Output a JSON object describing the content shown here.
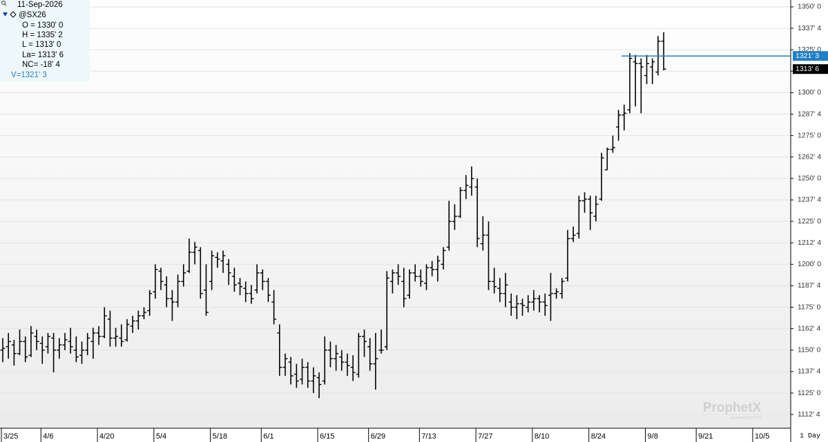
{
  "chart_data": {
    "type": "ohlc",
    "legend": {
      "date": "11-Sep-2026",
      "symbol": "@SX26",
      "lines": [
        "O = 1330' 0",
        "H = 1335' 2",
        "L = 1313' 0",
        "La= 1313' 6",
        "NC= -18' 4"
      ],
      "volume_line": "V=1321' 3"
    },
    "interval": "1 Day",
    "watermark": "ProphetX",
    "watermark_sub": "powered by DTN",
    "color": "#000000",
    "grid": true,
    "ylim": [
      1104.5,
      1354
    ],
    "yticks": [
      {
        "value": 1112.5,
        "label": "1112' 4"
      },
      {
        "value": 1125,
        "label": "1125' 0"
      },
      {
        "value": 1137.5,
        "label": "1137' 4"
      },
      {
        "value": 1150,
        "label": "1150' 0"
      },
      {
        "value": 1162.5,
        "label": "1162' 4"
      },
      {
        "value": 1175,
        "label": "1175' 0"
      },
      {
        "value": 1187.5,
        "label": "1187' 4"
      },
      {
        "value": 1200,
        "label": "1200' 0"
      },
      {
        "value": 1212.5,
        "label": "1212' 4"
      },
      {
        "value": 1225,
        "label": "1225' 0"
      },
      {
        "value": 1237.5,
        "label": "1237' 4"
      },
      {
        "value": 1250,
        "label": "1250' 0"
      },
      {
        "value": 1262.5,
        "label": "1262' 4"
      },
      {
        "value": 1275,
        "label": "1275' 0"
      },
      {
        "value": 1287.5,
        "label": "1287' 4"
      },
      {
        "value": 1300,
        "label": "1300' 0"
      },
      {
        "value": 1312.5,
        "label": "1312' 4"
      },
      {
        "value": 1325,
        "label": "1325' 0"
      },
      {
        "value": 1337.5,
        "label": "1337' 4"
      },
      {
        "value": 1350,
        "label": "1350' 0"
      }
    ],
    "markers": [
      {
        "value": 1321.375,
        "label": "1321' 3",
        "color": "#1f7fc8"
      },
      {
        "value": 1313.75,
        "label": "1313' 6",
        "color": "#000000"
      }
    ],
    "categories": [
      "3/25",
      null,
      null,
      null,
      null,
      null,
      null,
      "4/6",
      null,
      null,
      null,
      null,
      null,
      null,
      null,
      null,
      null,
      "4/20",
      null,
      null,
      null,
      null,
      null,
      null,
      null,
      null,
      null,
      "5/4",
      null,
      null,
      null,
      null,
      null,
      null,
      null,
      null,
      null,
      "5/18",
      null,
      null,
      null,
      null,
      null,
      null,
      null,
      null,
      "6/1",
      null,
      null,
      null,
      null,
      null,
      null,
      null,
      null,
      null,
      "6/15",
      null,
      null,
      null,
      null,
      null,
      null,
      null,
      null,
      "6/29",
      null,
      null,
      null,
      null,
      null,
      null,
      null,
      null,
      "7/13",
      null,
      null,
      null,
      null,
      null,
      null,
      null,
      null,
      null,
      "7/27",
      null,
      null,
      null,
      null,
      null,
      null,
      null,
      null,
      null,
      "8/10",
      null,
      null,
      null,
      null,
      null,
      null,
      null,
      null,
      null,
      "8/24",
      null,
      null,
      null,
      null,
      null,
      null,
      null,
      null,
      null,
      "9/8",
      null,
      null,
      null,
      null,
      null,
      null,
      null,
      null,
      "9/21",
      null,
      null,
      null,
      null,
      null,
      null,
      null,
      null,
      null,
      "10/5",
      null,
      null,
      null,
      null,
      null,
      null
    ],
    "ohlc": [
      [
        1150,
        1157,
        1143,
        1151
      ],
      [
        1152,
        1160,
        1145,
        1155
      ],
      [
        1153,
        1156,
        1141,
        1148
      ],
      [
        1148,
        1162,
        1147,
        1155
      ],
      [
        1155,
        1158,
        1143,
        1146
      ],
      [
        1147,
        1164,
        1146,
        1160
      ],
      [
        1158,
        1162,
        1150,
        1155
      ],
      [
        1154,
        1158,
        1142,
        1150
      ],
      [
        1152,
        1160,
        1148,
        1158
      ],
      [
        1157,
        1160,
        1137,
        1150
      ],
      [
        1150,
        1157,
        1145,
        1153
      ],
      [
        1153,
        1160,
        1150,
        1156
      ],
      [
        1155,
        1163,
        1148,
        1152
      ],
      [
        1150,
        1158,
        1143,
        1146
      ],
      [
        1147,
        1155,
        1142,
        1150
      ],
      [
        1150,
        1160,
        1147,
        1157
      ],
      [
        1155,
        1163,
        1145,
        1160
      ],
      [
        1160,
        1164,
        1153,
        1158
      ],
      [
        1158,
        1175,
        1157,
        1170
      ],
      [
        1168,
        1173,
        1152,
        1157
      ],
      [
        1157,
        1163,
        1152,
        1158
      ],
      [
        1157,
        1165,
        1152,
        1155
      ],
      [
        1156,
        1168,
        1155,
        1165
      ],
      [
        1164,
        1170,
        1160,
        1167
      ],
      [
        1167,
        1173,
        1162,
        1170
      ],
      [
        1170,
        1175,
        1168,
        1172
      ],
      [
        1173,
        1185,
        1170,
        1183
      ],
      [
        1184,
        1200,
        1180,
        1197
      ],
      [
        1196,
        1198,
        1185,
        1190
      ],
      [
        1188,
        1193,
        1175,
        1180
      ],
      [
        1180,
        1185,
        1167,
        1178
      ],
      [
        1178,
        1194,
        1175,
        1190
      ],
      [
        1190,
        1200,
        1187,
        1195
      ],
      [
        1196,
        1215,
        1195,
        1207
      ],
      [
        1207,
        1213,
        1200,
        1210
      ],
      [
        1208,
        1210,
        1180,
        1183
      ],
      [
        1185,
        1200,
        1170,
        1172
      ],
      [
        1190,
        1208,
        1185,
        1205
      ],
      [
        1204,
        1207,
        1198,
        1203
      ],
      [
        1202,
        1208,
        1195,
        1205
      ],
      [
        1200,
        1203,
        1188,
        1195
      ],
      [
        1193,
        1198,
        1184,
        1188
      ],
      [
        1189,
        1192,
        1182,
        1187
      ],
      [
        1186,
        1190,
        1178,
        1183
      ],
      [
        1183,
        1188,
        1177,
        1180
      ],
      [
        1185,
        1200,
        1183,
        1195
      ],
      [
        1195,
        1197,
        1185,
        1190
      ],
      [
        1190,
        1192,
        1178,
        1182
      ],
      [
        1178,
        1185,
        1165,
        1168
      ],
      [
        1160,
        1165,
        1135,
        1140
      ],
      [
        1140,
        1148,
        1135,
        1145
      ],
      [
        1143,
        1146,
        1130,
        1135
      ],
      [
        1136,
        1142,
        1128,
        1132
      ],
      [
        1133,
        1145,
        1130,
        1140
      ],
      [
        1140,
        1143,
        1128,
        1132
      ],
      [
        1132,
        1140,
        1125,
        1135
      ],
      [
        1134,
        1137,
        1122,
        1130
      ],
      [
        1132,
        1158,
        1130,
        1150
      ],
      [
        1150,
        1155,
        1140,
        1145
      ],
      [
        1145,
        1153,
        1138,
        1148
      ],
      [
        1146,
        1150,
        1138,
        1143
      ],
      [
        1143,
        1148,
        1135,
        1141
      ],
      [
        1140,
        1147,
        1132,
        1137
      ],
      [
        1136,
        1160,
        1134,
        1158
      ],
      [
        1158,
        1162,
        1146,
        1155
      ],
      [
        1152,
        1157,
        1138,
        1142
      ],
      [
        1142,
        1160,
        1127,
        1145
      ],
      [
        1150,
        1162,
        1148,
        1150
      ],
      [
        1152,
        1196,
        1150,
        1192
      ],
      [
        1190,
        1197,
        1183,
        1195
      ],
      [
        1195,
        1200,
        1188,
        1193
      ],
      [
        1190,
        1198,
        1175,
        1180
      ],
      [
        1182,
        1197,
        1180,
        1195
      ],
      [
        1195,
        1200,
        1190,
        1193
      ],
      [
        1193,
        1197,
        1187,
        1190
      ],
      [
        1189,
        1200,
        1185,
        1198
      ],
      [
        1198,
        1202,
        1193,
        1197
      ],
      [
        1197,
        1205,
        1190,
        1202
      ],
      [
        1200,
        1210,
        1197,
        1208
      ],
      [
        1210,
        1237,
        1208,
        1225
      ],
      [
        1225,
        1235,
        1220,
        1228
      ],
      [
        1228,
        1245,
        1227,
        1243
      ],
      [
        1243,
        1252,
        1238,
        1246
      ],
      [
        1245,
        1257,
        1240,
        1250
      ],
      [
        1245,
        1250,
        1210,
        1215
      ],
      [
        1212,
        1228,
        1208,
        1217
      ],
      [
        1217,
        1225,
        1185,
        1190
      ],
      [
        1190,
        1198,
        1183,
        1187
      ],
      [
        1186,
        1192,
        1178,
        1183
      ],
      [
        1183,
        1195,
        1175,
        1188
      ],
      [
        1178,
        1183,
        1170,
        1175
      ],
      [
        1175,
        1182,
        1168,
        1177
      ],
      [
        1177,
        1180,
        1170,
        1176
      ],
      [
        1175,
        1182,
        1172,
        1178
      ],
      [
        1178,
        1185,
        1173,
        1180
      ],
      [
        1180,
        1182,
        1172,
        1178
      ],
      [
        1178,
        1183,
        1170,
        1176
      ],
      [
        1182,
        1195,
        1167,
        1183
      ],
      [
        1183,
        1186,
        1180,
        1184
      ],
      [
        1183,
        1192,
        1180,
        1190
      ],
      [
        1192,
        1220,
        1190,
        1215
      ],
      [
        1215,
        1222,
        1213,
        1217
      ],
      [
        1218,
        1240,
        1215,
        1237
      ],
      [
        1237,
        1242,
        1230,
        1238
      ],
      [
        1238,
        1240,
        1220,
        1230
      ],
      [
        1228,
        1240,
        1225,
        1235
      ],
      [
        1238,
        1265,
        1237,
        1262
      ],
      [
        1255,
        1268,
        1255,
        1267
      ],
      [
        1267,
        1275,
        1265,
        1268
      ],
      [
        1280,
        1290,
        1272,
        1287
      ],
      [
        1287,
        1293,
        1278,
        1288
      ],
      [
        1290,
        1323,
        1288,
        1320
      ],
      [
        1318,
        1322,
        1292,
        1317
      ],
      [
        1317,
        1320,
        1288,
        1315
      ],
      [
        1310,
        1322,
        1305,
        1317
      ],
      [
        1315,
        1320,
        1305,
        1318
      ],
      [
        1312,
        1333,
        1310,
        1330
      ],
      [
        1330,
        1335.25,
        1313,
        1313.75
      ],
      null,
      null,
      null,
      null,
      null,
      null,
      null,
      null,
      null,
      null,
      null,
      null,
      null,
      null,
      null,
      null,
      null,
      null,
      null,
      null,
      null,
      null
    ]
  }
}
